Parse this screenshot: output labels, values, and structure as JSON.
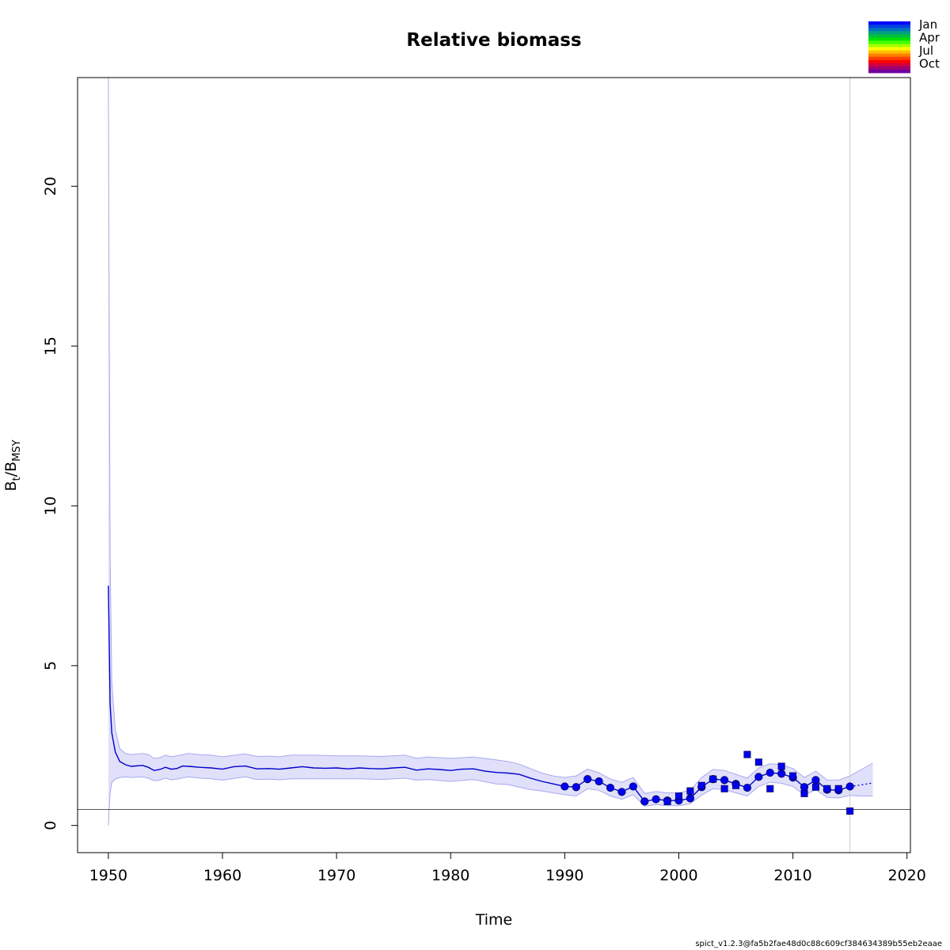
{
  "footer": "spict_v1.2.3@fa5b2fae48d0c88c609cf384634389b55eb2eaae",
  "chart_data": {
    "type": "line",
    "title": "Relative biomass",
    "xlabel": "Time",
    "ylabel_main": "B",
    "ylabel_sub1": "t",
    "ylabel_sep": "/B",
    "ylabel_sub2": "MSY",
    "xlim": [
      1947.3,
      2020.3
    ],
    "ylim": [
      -0.85,
      23.4
    ],
    "xticks": [
      1950,
      1960,
      1970,
      1980,
      1990,
      2000,
      2010,
      2020
    ],
    "yticks": [
      0,
      5,
      10,
      15,
      20
    ],
    "grid": false,
    "reference_line_y": 0.5,
    "vertical_line_x": 2015,
    "colors": {
      "line": "#0000cc",
      "ci_fill": "#e0e0fa",
      "ci_edge": "#a8a8f0",
      "points": "#0000ee",
      "hline": "#555555",
      "vline": "#cccccc"
    },
    "series": [
      {
        "name": "estimate",
        "x": [
          1950.0,
          1950.15,
          1950.3,
          1950.6,
          1951.0,
          1951.5,
          1952,
          1953,
          1953.5,
          1954,
          1954.5,
          1955,
          1955.5,
          1956,
          1956.5,
          1957,
          1958,
          1959,
          1960,
          1961,
          1962,
          1963,
          1964,
          1965,
          1966,
          1967,
          1968,
          1969,
          1970,
          1971,
          1972,
          1973,
          1974,
          1975,
          1976,
          1977,
          1978,
          1979,
          1980,
          1981,
          1982,
          1983,
          1984,
          1985,
          1986,
          1987,
          1988,
          1989,
          1990,
          1991,
          1992,
          1993,
          1994,
          1995,
          1996,
          1997,
          1998,
          1999,
          2000,
          2001,
          2002,
          2003,
          2004,
          2005,
          2006,
          2007,
          2008,
          2009,
          2010,
          2011,
          2012,
          2013,
          2014,
          2015
        ],
        "y": [
          7.5,
          3.8,
          2.9,
          2.3,
          2.0,
          1.9,
          1.85,
          1.88,
          1.82,
          1.72,
          1.75,
          1.82,
          1.76,
          1.78,
          1.86,
          1.85,
          1.82,
          1.8,
          1.76,
          1.84,
          1.86,
          1.77,
          1.78,
          1.76,
          1.8,
          1.84,
          1.8,
          1.79,
          1.8,
          1.77,
          1.8,
          1.78,
          1.77,
          1.8,
          1.82,
          1.73,
          1.77,
          1.75,
          1.72,
          1.76,
          1.77,
          1.7,
          1.66,
          1.64,
          1.6,
          1.48,
          1.38,
          1.3,
          1.22,
          1.2,
          1.45,
          1.38,
          1.18,
          1.05,
          1.22,
          0.75,
          0.82,
          0.78,
          0.78,
          0.85,
          1.2,
          1.45,
          1.42,
          1.3,
          1.18,
          1.52,
          1.65,
          1.62,
          1.5,
          1.2,
          1.42,
          1.12,
          1.1,
          1.22
        ]
      },
      {
        "name": "forecast",
        "x": [
          2015,
          2016,
          2017
        ],
        "y": [
          1.22,
          1.27,
          1.33
        ]
      },
      {
        "name": "ci_upper",
        "x": [
          1950.0,
          1950.05,
          1950.15,
          1950.3,
          1950.6,
          1951.0,
          1951.5,
          1952,
          1953,
          1953.5,
          1954,
          1954.5,
          1955,
          1955.5,
          1956,
          1957,
          1958,
          1959,
          1960,
          1962,
          1963,
          1964,
          1965,
          1966,
          1968,
          1970,
          1972,
          1974,
          1976,
          1977,
          1978,
          1980,
          1982,
          1984,
          1985,
          1986,
          1987,
          1988,
          1989,
          1990,
          1991,
          1992,
          1993,
          1994,
          1995,
          1996,
          1997,
          1998,
          1999,
          2000,
          2001,
          2002,
          2003,
          2004,
          2005,
          2006,
          2007,
          2008,
          2009,
          2010,
          2011,
          2012,
          2013,
          2014,
          2015,
          2016,
          2017
        ],
        "y": [
          23.4,
          18.0,
          8.5,
          4.5,
          3.0,
          2.4,
          2.25,
          2.22,
          2.25,
          2.22,
          2.1,
          2.12,
          2.2,
          2.15,
          2.18,
          2.25,
          2.22,
          2.2,
          2.15,
          2.24,
          2.16,
          2.17,
          2.15,
          2.2,
          2.2,
          2.18,
          2.18,
          2.16,
          2.2,
          2.1,
          2.14,
          2.1,
          2.14,
          2.05,
          2.0,
          1.92,
          1.78,
          1.64,
          1.55,
          1.5,
          1.55,
          1.76,
          1.65,
          1.45,
          1.35,
          1.5,
          1.0,
          1.06,
          1.02,
          1.02,
          1.1,
          1.5,
          1.75,
          1.72,
          1.6,
          1.48,
          1.8,
          1.93,
          1.9,
          1.78,
          1.5,
          1.7,
          1.42,
          1.42,
          1.55,
          1.75,
          1.95
        ]
      },
      {
        "name": "ci_lower",
        "x": [
          1950.0,
          1950.05,
          1950.15,
          1950.3,
          1950.6,
          1951.0,
          1951.5,
          1952,
          1953,
          1953.5,
          1954,
          1954.5,
          1955,
          1955.5,
          1956,
          1957,
          1958,
          1959,
          1960,
          1962,
          1963,
          1964,
          1965,
          1966,
          1968,
          1970,
          1972,
          1974,
          1976,
          1977,
          1978,
          1980,
          1982,
          1984,
          1985,
          1986,
          1987,
          1988,
          1989,
          1990,
          1991,
          1992,
          1993,
          1994,
          1995,
          1996,
          1997,
          1998,
          1999,
          2000,
          2001,
          2002,
          2003,
          2004,
          2005,
          2006,
          2007,
          2008,
          2009,
          2010,
          2011,
          2012,
          2013,
          2014,
          2015,
          2016,
          2017
        ],
        "y": [
          0.0,
          0.4,
          1.0,
          1.35,
          1.45,
          1.5,
          1.52,
          1.5,
          1.52,
          1.48,
          1.4,
          1.42,
          1.48,
          1.43,
          1.45,
          1.52,
          1.48,
          1.46,
          1.42,
          1.52,
          1.44,
          1.45,
          1.43,
          1.46,
          1.46,
          1.46,
          1.46,
          1.44,
          1.48,
          1.42,
          1.44,
          1.38,
          1.44,
          1.3,
          1.28,
          1.2,
          1.12,
          1.08,
          1.02,
          0.96,
          0.92,
          1.15,
          1.1,
          0.92,
          0.82,
          0.96,
          0.6,
          0.65,
          0.62,
          0.62,
          0.68,
          0.95,
          1.15,
          1.12,
          1.02,
          0.92,
          1.22,
          1.35,
          1.32,
          1.22,
          0.95,
          1.12,
          0.88,
          0.86,
          0.94,
          0.92,
          0.92
        ]
      },
      {
        "name": "index1",
        "marker": "circle",
        "x": [
          1990,
          1991,
          1992,
          1993,
          1994,
          1995,
          1996,
          1997,
          1998,
          1999,
          2000,
          2001,
          2002,
          2003,
          2004,
          2005,
          2006,
          2007,
          2008,
          2009,
          2010,
          2011,
          2012,
          2013,
          2014,
          2015
        ],
        "y": [
          1.22,
          1.2,
          1.45,
          1.38,
          1.18,
          1.05,
          1.22,
          0.75,
          0.82,
          0.78,
          0.78,
          0.85,
          1.2,
          1.45,
          1.42,
          1.3,
          1.18,
          1.52,
          1.65,
          1.62,
          1.5,
          1.2,
          1.42,
          1.12,
          1.1,
          1.22
        ]
      },
      {
        "name": "index2",
        "marker": "square",
        "x": [
          1999,
          2000,
          2001,
          2002,
          2003,
          2004,
          2005,
          2006,
          2007,
          2008,
          2009,
          2010,
          2011,
          2012,
          2013,
          2014,
          2015
        ],
        "y": [
          0.75,
          0.92,
          1.08,
          1.25,
          1.45,
          1.15,
          1.25,
          2.22,
          1.98,
          1.15,
          1.85,
          1.55,
          1.0,
          1.2,
          1.15,
          1.15,
          0.45
        ]
      }
    ],
    "legend": {
      "position": "top-right",
      "type": "color-bar",
      "labels": [
        "Jan",
        "Apr",
        "Jul",
        "Oct"
      ],
      "colors": [
        "#0000ff",
        "#0040e0",
        "#0070c0",
        "#00a080",
        "#00c040",
        "#00e000",
        "#40ff00",
        "#a0ff00",
        "#ffff00",
        "#ffc000",
        "#ff8000",
        "#ff4000",
        "#ff0000",
        "#d00040",
        "#a00070",
        "#7000a0"
      ]
    }
  }
}
